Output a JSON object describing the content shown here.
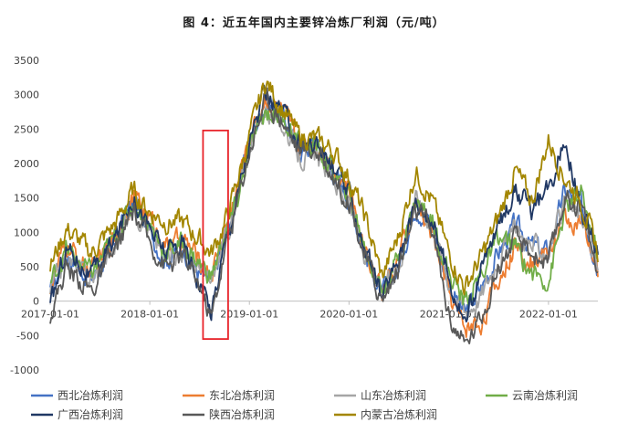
{
  "chart_data": {
    "type": "line",
    "title": "图 4：近五年国内主要锌冶炼厂利润（元/吨）",
    "xlabel": "",
    "ylabel": "",
    "ylim": [
      -1000,
      3500
    ],
    "yticks": [
      3500,
      3000,
      2500,
      2000,
      1500,
      1000,
      500,
      0,
      -500,
      -1000
    ],
    "xlim": [
      "2017-01-01",
      "2022-07-01"
    ],
    "xticks": [
      "2017-01-01",
      "2018-01-01",
      "2019-01-01",
      "2020-01-01",
      "2021-01-01",
      "2022-01-01"
    ],
    "grid": false,
    "legend_position": "bottom",
    "highlight_box": {
      "x_start": "2018-07-15",
      "x_end": "2018-10-15",
      "y_min": -550,
      "y_max": 2480,
      "color": "#e8232a"
    },
    "series": [
      {
        "name": "西北冶炼利润",
        "color": "#4472c4",
        "points": [
          [
            "2017-01-01",
            100
          ],
          [
            "2017-03-01",
            700
          ],
          [
            "2017-06-01",
            300
          ],
          [
            "2017-09-01",
            900
          ],
          [
            "2017-11-01",
            1500
          ],
          [
            "2018-01-01",
            1000
          ],
          [
            "2018-03-01",
            600
          ],
          [
            "2018-05-01",
            800
          ],
          [
            "2018-07-01",
            400
          ],
          [
            "2018-08-15",
            250
          ],
          [
            "2018-10-01",
            900
          ],
          [
            "2018-11-15",
            1500
          ],
          [
            "2019-01-01",
            2300
          ],
          [
            "2019-03-01",
            2900
          ],
          [
            "2019-05-01",
            2700
          ],
          [
            "2019-07-01",
            2200
          ],
          [
            "2019-09-01",
            2300
          ],
          [
            "2019-11-01",
            1900
          ],
          [
            "2020-01-01",
            1500
          ],
          [
            "2020-03-01",
            700
          ],
          [
            "2020-05-01",
            100
          ],
          [
            "2020-07-01",
            500
          ],
          [
            "2020-09-01",
            1400
          ],
          [
            "2020-11-01",
            1100
          ],
          [
            "2021-01-01",
            250
          ],
          [
            "2021-03-01",
            -200
          ],
          [
            "2021-05-01",
            200
          ],
          [
            "2021-07-01",
            700
          ],
          [
            "2021-09-01",
            1100
          ],
          [
            "2021-11-01",
            800
          ],
          [
            "2022-01-01",
            700
          ],
          [
            "2022-03-01",
            1600
          ],
          [
            "2022-05-01",
            1400
          ],
          [
            "2022-07-01",
            500
          ]
        ]
      },
      {
        "name": "东北冶炼利润",
        "color": "#ed7d31",
        "points": [
          [
            "2017-01-01",
            200
          ],
          [
            "2017-03-01",
            800
          ],
          [
            "2017-06-01",
            400
          ],
          [
            "2017-09-01",
            1000
          ],
          [
            "2017-11-01",
            1550
          ],
          [
            "2018-01-01",
            1200
          ],
          [
            "2018-03-01",
            800
          ],
          [
            "2018-05-01",
            900
          ],
          [
            "2018-07-01",
            600
          ],
          [
            "2018-08-15",
            400
          ],
          [
            "2018-10-01",
            1000
          ],
          [
            "2018-11-15",
            1600
          ],
          [
            "2019-01-01",
            2400
          ],
          [
            "2019-03-01",
            2950
          ],
          [
            "2019-05-01",
            2750
          ],
          [
            "2019-07-01",
            2300
          ],
          [
            "2019-09-01",
            2300
          ],
          [
            "2019-11-01",
            2000
          ],
          [
            "2020-01-01",
            1600
          ],
          [
            "2020-03-01",
            800
          ],
          [
            "2020-05-01",
            150
          ],
          [
            "2020-07-01",
            600
          ],
          [
            "2020-09-01",
            1400
          ],
          [
            "2020-11-01",
            1000
          ],
          [
            "2021-01-01",
            100
          ],
          [
            "2021-03-01",
            -400
          ],
          [
            "2021-05-01",
            -300
          ],
          [
            "2021-07-01",
            300
          ],
          [
            "2021-09-01",
            800
          ],
          [
            "2021-11-01",
            600
          ],
          [
            "2022-01-01",
            700
          ],
          [
            "2022-03-01",
            1200
          ],
          [
            "2022-05-01",
            1100
          ],
          [
            "2022-07-01",
            400
          ]
        ]
      },
      {
        "name": "山东冶炼利润",
        "color": "#a5a5a5",
        "points": [
          [
            "2017-01-01",
            150
          ],
          [
            "2017-03-01",
            650
          ],
          [
            "2017-06-01",
            300
          ],
          [
            "2017-09-01",
            850
          ],
          [
            "2017-11-01",
            1400
          ],
          [
            "2018-01-01",
            1000
          ],
          [
            "2018-03-01",
            650
          ],
          [
            "2018-05-01",
            750
          ],
          [
            "2018-07-01",
            450
          ],
          [
            "2018-08-15",
            300
          ],
          [
            "2018-10-01",
            850
          ],
          [
            "2018-11-15",
            1450
          ],
          [
            "2019-01-01",
            2250
          ],
          [
            "2019-03-01",
            2800
          ],
          [
            "2019-05-01",
            2600
          ],
          [
            "2019-07-01",
            2100
          ],
          [
            "2019-09-01",
            2100
          ],
          [
            "2019-11-01",
            1800
          ],
          [
            "2020-01-01",
            1450
          ],
          [
            "2020-03-01",
            650
          ],
          [
            "2020-05-01",
            80
          ],
          [
            "2020-07-01",
            550
          ],
          [
            "2020-09-01",
            1500
          ],
          [
            "2020-11-01",
            1150
          ],
          [
            "2021-01-01",
            300
          ],
          [
            "2021-03-01",
            -150
          ],
          [
            "2021-05-01",
            100
          ],
          [
            "2021-07-01",
            650
          ],
          [
            "2021-09-01",
            1050
          ],
          [
            "2021-11-01",
            800
          ],
          [
            "2022-01-01",
            750
          ],
          [
            "2022-03-01",
            1400
          ],
          [
            "2022-05-01",
            1250
          ],
          [
            "2022-07-01",
            450
          ]
        ]
      },
      {
        "name": "云南冶炼利润",
        "color": "#70ad47",
        "points": [
          [
            "2017-01-01",
            250
          ],
          [
            "2017-03-01",
            750
          ],
          [
            "2017-06-01",
            400
          ],
          [
            "2017-09-01",
            950
          ],
          [
            "2017-11-01",
            1450
          ],
          [
            "2018-01-01",
            1100
          ],
          [
            "2018-03-01",
            700
          ],
          [
            "2018-05-01",
            850
          ],
          [
            "2018-07-01",
            550
          ],
          [
            "2018-08-15",
            350
          ],
          [
            "2018-10-01",
            950
          ],
          [
            "2018-11-15",
            1400
          ],
          [
            "2019-01-01",
            2200
          ],
          [
            "2019-03-01",
            2750
          ],
          [
            "2019-05-01",
            2700
          ],
          [
            "2019-07-01",
            2300
          ],
          [
            "2019-09-01",
            2250
          ],
          [
            "2019-11-01",
            1900
          ],
          [
            "2020-01-01",
            1550
          ],
          [
            "2020-03-01",
            750
          ],
          [
            "2020-05-01",
            150
          ],
          [
            "2020-07-01",
            650
          ],
          [
            "2020-09-01",
            1450
          ],
          [
            "2020-11-01",
            1200
          ],
          [
            "2021-01-01",
            400
          ],
          [
            "2021-03-01",
            0
          ],
          [
            "2021-05-01",
            400
          ],
          [
            "2021-07-01",
            900
          ],
          [
            "2021-09-01",
            800
          ],
          [
            "2021-11-01",
            400
          ],
          [
            "2022-01-01",
            300
          ],
          [
            "2022-03-01",
            1300
          ],
          [
            "2022-05-01",
            1550
          ],
          [
            "2022-07-01",
            700
          ]
        ]
      },
      {
        "name": "广西冶炼利润",
        "color": "#203864",
        "points": [
          [
            "2017-01-01",
            -100
          ],
          [
            "2017-03-01",
            800
          ],
          [
            "2017-06-01",
            350
          ],
          [
            "2017-09-01",
            950
          ],
          [
            "2017-11-01",
            1550
          ],
          [
            "2018-01-01",
            1050
          ],
          [
            "2018-03-01",
            700
          ],
          [
            "2018-05-01",
            850
          ],
          [
            "2018-07-01",
            300
          ],
          [
            "2018-08-15",
            -150
          ],
          [
            "2018-10-01",
            800
          ],
          [
            "2018-11-15",
            1500
          ],
          [
            "2019-01-01",
            2300
          ],
          [
            "2019-03-01",
            3000
          ],
          [
            "2019-05-01",
            2750
          ],
          [
            "2019-07-01",
            2300
          ],
          [
            "2019-09-01",
            2300
          ],
          [
            "2019-11-01",
            1950
          ],
          [
            "2020-01-01",
            1550
          ],
          [
            "2020-03-01",
            750
          ],
          [
            "2020-05-01",
            50
          ],
          [
            "2020-07-01",
            650
          ],
          [
            "2020-09-01",
            1450
          ],
          [
            "2020-11-01",
            1200
          ],
          [
            "2021-01-01",
            350
          ],
          [
            "2021-03-01",
            -300
          ],
          [
            "2021-05-01",
            450
          ],
          [
            "2021-07-01",
            1100
          ],
          [
            "2021-09-01",
            1650
          ],
          [
            "2021-11-01",
            1300
          ],
          [
            "2022-01-01",
            1600
          ],
          [
            "2022-03-01",
            2400
          ],
          [
            "2022-05-01",
            1300
          ],
          [
            "2022-07-01",
            700
          ]
        ]
      },
      {
        "name": "陕西冶炼利润",
        "color": "#595959",
        "points": [
          [
            "2017-01-01",
            -200
          ],
          [
            "2017-03-01",
            500
          ],
          [
            "2017-06-01",
            150
          ],
          [
            "2017-09-01",
            750
          ],
          [
            "2017-11-01",
            1300
          ],
          [
            "2018-01-01",
            850
          ],
          [
            "2018-03-01",
            500
          ],
          [
            "2018-05-01",
            650
          ],
          [
            "2018-07-01",
            250
          ],
          [
            "2018-08-15",
            -250
          ],
          [
            "2018-10-01",
            700
          ],
          [
            "2018-11-15",
            1400
          ],
          [
            "2019-01-01",
            2200
          ],
          [
            "2019-03-01",
            2950
          ],
          [
            "2019-05-01",
            2650
          ],
          [
            "2019-07-01",
            2200
          ],
          [
            "2019-09-01",
            2200
          ],
          [
            "2019-11-01",
            1850
          ],
          [
            "2020-01-01",
            1450
          ],
          [
            "2020-03-01",
            650
          ],
          [
            "2020-05-01",
            0
          ],
          [
            "2020-07-01",
            500
          ],
          [
            "2020-09-01",
            1300
          ],
          [
            "2020-11-01",
            1050
          ],
          [
            "2021-01-01",
            -200
          ],
          [
            "2021-03-01",
            -650
          ],
          [
            "2021-05-01",
            -200
          ],
          [
            "2021-07-01",
            500
          ],
          [
            "2021-09-01",
            900
          ],
          [
            "2021-11-01",
            700
          ],
          [
            "2022-01-01",
            550
          ],
          [
            "2022-03-01",
            1500
          ],
          [
            "2022-05-01",
            1400
          ],
          [
            "2022-07-01",
            400
          ]
        ]
      },
      {
        "name": "内蒙古冶炼利润",
        "color": "#a38600",
        "points": [
          [
            "2017-01-01",
            500
          ],
          [
            "2017-03-01",
            1050
          ],
          [
            "2017-06-01",
            700
          ],
          [
            "2017-09-01",
            1150
          ],
          [
            "2017-11-01",
            1600
          ],
          [
            "2018-01-01",
            1300
          ],
          [
            "2018-03-01",
            1150
          ],
          [
            "2018-05-01",
            1150
          ],
          [
            "2018-07-01",
            900
          ],
          [
            "2018-08-15",
            700
          ],
          [
            "2018-10-01",
            1100
          ],
          [
            "2018-11-15",
            1700
          ],
          [
            "2019-01-01",
            2400
          ],
          [
            "2019-03-01",
            3200
          ],
          [
            "2019-05-01",
            2800
          ],
          [
            "2019-07-01",
            2400
          ],
          [
            "2019-09-01",
            2350
          ],
          [
            "2019-11-01",
            2200
          ],
          [
            "2020-01-01",
            1800
          ],
          [
            "2020-03-01",
            1200
          ],
          [
            "2020-05-01",
            350
          ],
          [
            "2020-07-01",
            950
          ],
          [
            "2020-09-01",
            1900
          ],
          [
            "2020-11-01",
            1450
          ],
          [
            "2021-01-01",
            700
          ],
          [
            "2021-03-01",
            200
          ],
          [
            "2021-05-01",
            650
          ],
          [
            "2021-07-01",
            1200
          ],
          [
            "2021-09-01",
            1900
          ],
          [
            "2021-11-01",
            1450
          ],
          [
            "2022-01-01",
            2350
          ],
          [
            "2022-03-01",
            1800
          ],
          [
            "2022-05-01",
            1450
          ],
          [
            "2022-07-01",
            700
          ]
        ]
      }
    ]
  }
}
